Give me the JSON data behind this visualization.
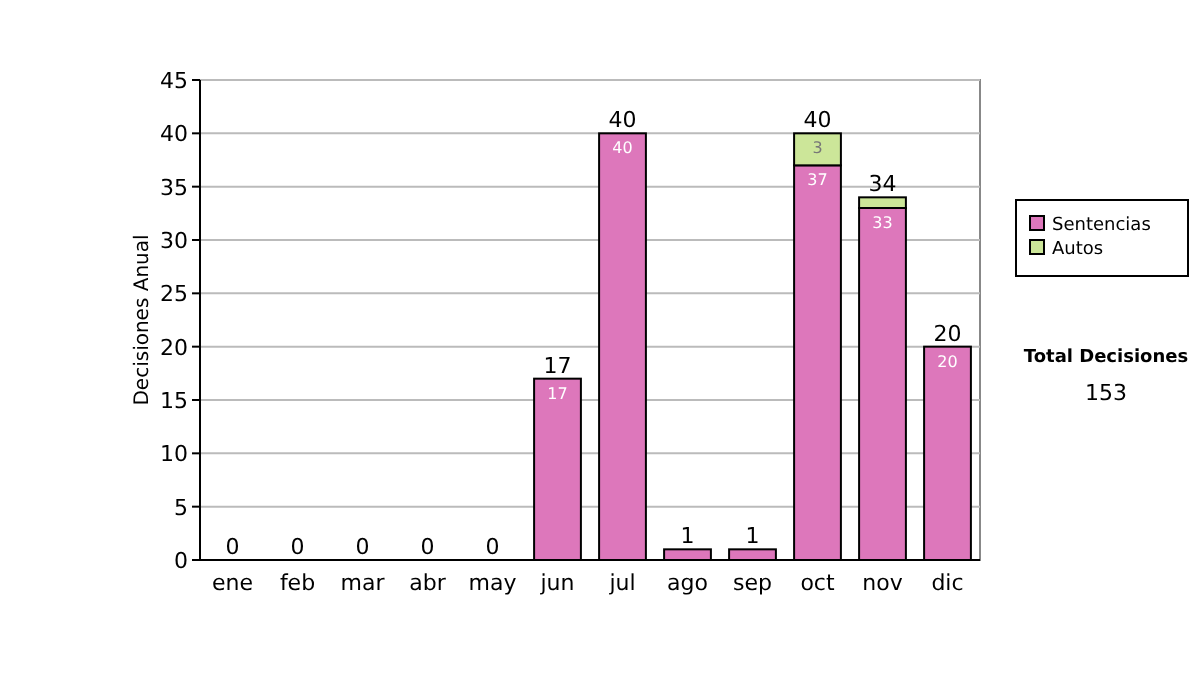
{
  "chart_data": {
    "type": "bar",
    "stacked": true,
    "ylabel": "Decisiones Anual",
    "categories": [
      "ene",
      "feb",
      "mar",
      "abr",
      "may",
      "jun",
      "jul",
      "ago",
      "sep",
      "oct",
      "nov",
      "dic"
    ],
    "series": [
      {
        "name": "Sentencias",
        "color": "#dd77bb",
        "values": [
          0,
          0,
          0,
          0,
          0,
          17,
          40,
          1,
          1,
          37,
          33,
          20
        ],
        "value_labels": [
          null,
          null,
          null,
          null,
          null,
          "17",
          "40",
          null,
          null,
          "37",
          "33",
          "20"
        ]
      },
      {
        "name": "Autos",
        "color": "#cce699",
        "values": [
          0,
          0,
          0,
          0,
          0,
          0,
          0,
          0,
          0,
          3,
          1,
          0
        ],
        "value_labels": [
          null,
          null,
          null,
          null,
          null,
          null,
          null,
          null,
          null,
          "3",
          null,
          null
        ]
      }
    ],
    "totals": [
      "0",
      "0",
      "0",
      "0",
      "0",
      "17",
      "40",
      "1",
      "1",
      "40",
      "34",
      "20"
    ],
    "ylim": [
      0,
      45
    ],
    "yticks": [
      0,
      5,
      10,
      15,
      20,
      25,
      30,
      35,
      40,
      45
    ],
    "grid": "y",
    "legend": "right",
    "annotations": [
      "Total Decisiones",
      "153"
    ]
  }
}
